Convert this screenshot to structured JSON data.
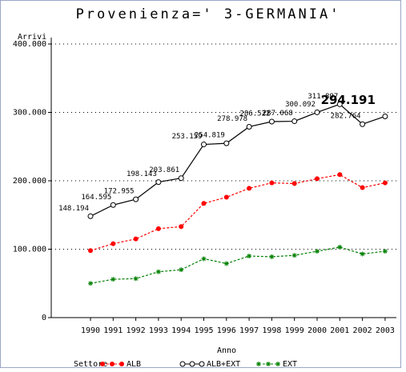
{
  "chart_data": {
    "type": "line",
    "title": "Provenienza=' 3-GERMANIA'",
    "y_label": "Arrivi",
    "x_label": "Anno",
    "legend_title": "Settore",
    "categories": [
      "1990",
      "1991",
      "1992",
      "1993",
      "1994",
      "1995",
      "1996",
      "1997",
      "1998",
      "1999",
      "2000",
      "2001",
      "2002",
      "2003"
    ],
    "series": [
      {
        "name": "ALB",
        "color": "#ff0000",
        "marker": "dot",
        "dash": true,
        "values": [
          98000,
          108000,
          115000,
          130000,
          133000,
          167000,
          176000,
          189000,
          197000,
          196000,
          203000,
          209000,
          190000,
          197000
        ]
      },
      {
        "name": "ALB+EXT",
        "color": "#000000",
        "marker": "circle",
        "dash": false,
        "values": [
          148194,
          164595,
          172955,
          198143,
          203861,
          253159,
          254819,
          278978,
          286522,
          287068,
          300092,
          311897,
          282764,
          294191
        ],
        "value_labels": [
          "148.194",
          "164.595",
          "172.955",
          "198.143",
          "203.861",
          "253.159",
          "254.819",
          "278.978",
          "286.522",
          "287.068",
          "300.092",
          "311.897",
          "282.764",
          "294.191"
        ]
      },
      {
        "name": "EXT",
        "color": "#008000",
        "marker": "star",
        "dash": true,
        "values": [
          50000,
          56000,
          57000,
          67000,
          70000,
          86000,
          79000,
          90000,
          89000,
          91000,
          97000,
          103000,
          93000,
          97000
        ]
      }
    ],
    "ylim": [
      0,
      400000
    ],
    "yticks": [
      0,
      {
        "value": 100000,
        "label": "100.000"
      },
      {
        "value": 200000,
        "label": "200.000"
      },
      {
        "value": 300000,
        "label": "300.000"
      },
      {
        "value": 400000,
        "label": "400.000"
      }
    ],
    "grid": true,
    "legend": "bottom"
  }
}
